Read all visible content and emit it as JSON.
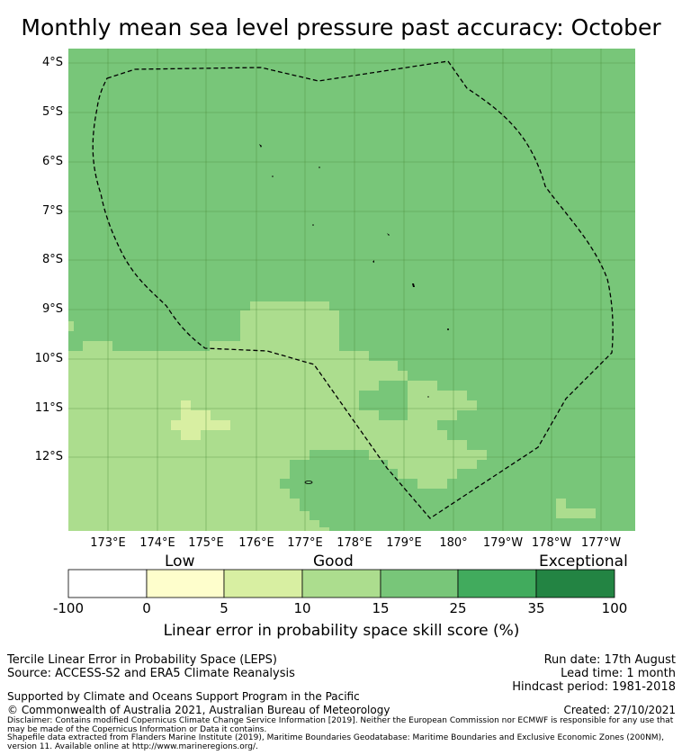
{
  "title": "Monthly mean sea level pressure past accuracy: October",
  "map": {
    "lat_labels": [
      "4°S",
      "5°S",
      "6°S",
      "7°S",
      "8°S",
      "9°S",
      "10°S",
      "11°S",
      "12°S"
    ],
    "lon_labels": [
      "173°E",
      "174°E",
      "175°E",
      "176°E",
      "177°E",
      "178°E",
      "179°E",
      "180°",
      "179°W",
      "178°W",
      "177°W"
    ],
    "lat_range": [
      -13.4,
      -3.7
    ],
    "lon_range": [
      172.2,
      183.7
    ],
    "boundary": "dashed black line (Fiji maritime zone)"
  },
  "colorbar": {
    "categories": [
      "Low",
      "Good",
      "Exceptional"
    ],
    "ticks": [
      "-100",
      "0",
      "5",
      "10",
      "15",
      "25",
      "35",
      "100"
    ],
    "colors": [
      "#ffffff",
      "#fefecc",
      "#d8efa2",
      "#acdd8e",
      "#78c679",
      "#41ab5d",
      "#238443"
    ],
    "label": "Linear error in probability space skill score (%)"
  },
  "footer": {
    "method": "Tercile Linear Error in Probability Space (LEPS)",
    "source": "Source: ACCESS-S2 and ERA5 Climate Reanalysis",
    "run_date": "Run date: 17th August",
    "lead_time": "Lead time: 1 month",
    "hindcast": "Hindcast period: 1981-2018",
    "support": "Supported by Climate and Oceans Support Program in the Pacific",
    "copyright": "© Commonwealth of Australia 2021, Australian Bureau of Meteorology",
    "created": "Created: 27/10/2021",
    "disclaimer": "Disclaimer: Contains modified Copernicus Climate Change Service Information [2019]. Neither the European Commission nor ECMWF is responsible for any use that may be made of the Copernicus Information or Data it contains.",
    "shapefile": "Shapefile data extracted from Flanders Marine Institute (2019), Maritime Boundaries Geodatabase: Maritime Boundaries and Exclusive Economic Zones (200NM), version 11. Available online at http://www.marineregions.org/."
  }
}
